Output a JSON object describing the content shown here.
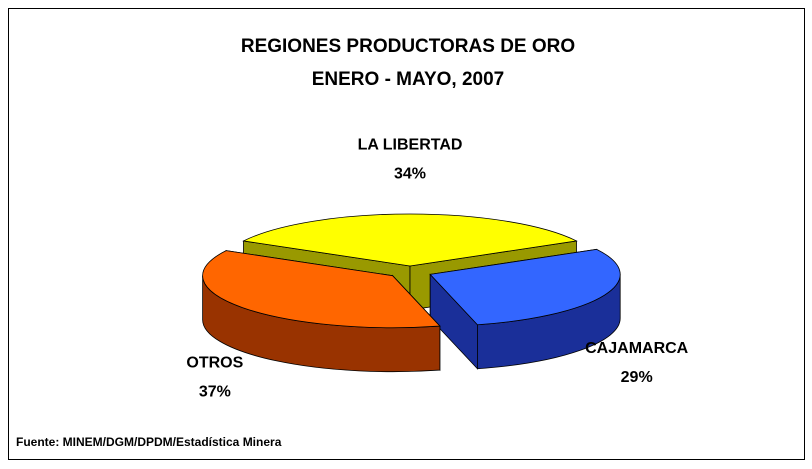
{
  "chart_data": {
    "type": "pie3d",
    "title": "REGIONES PRODUCTORAS DE ORO",
    "subtitle": "ENERO - MAYO, 2007",
    "categories": [
      "LA LIBERTAD",
      "CAJAMARCA",
      "OTROS"
    ],
    "values": [
      34,
      29,
      37
    ],
    "value_labels": [
      "34%",
      "29%",
      "37%"
    ],
    "colors": [
      "#ffff00",
      "#3366ff",
      "#ff6600"
    ],
    "side_colors": [
      "#999900",
      "#1a2f99",
      "#993300"
    ],
    "source": "Fuente: MINEM/DGM/DPDM/Estadística Minera"
  }
}
